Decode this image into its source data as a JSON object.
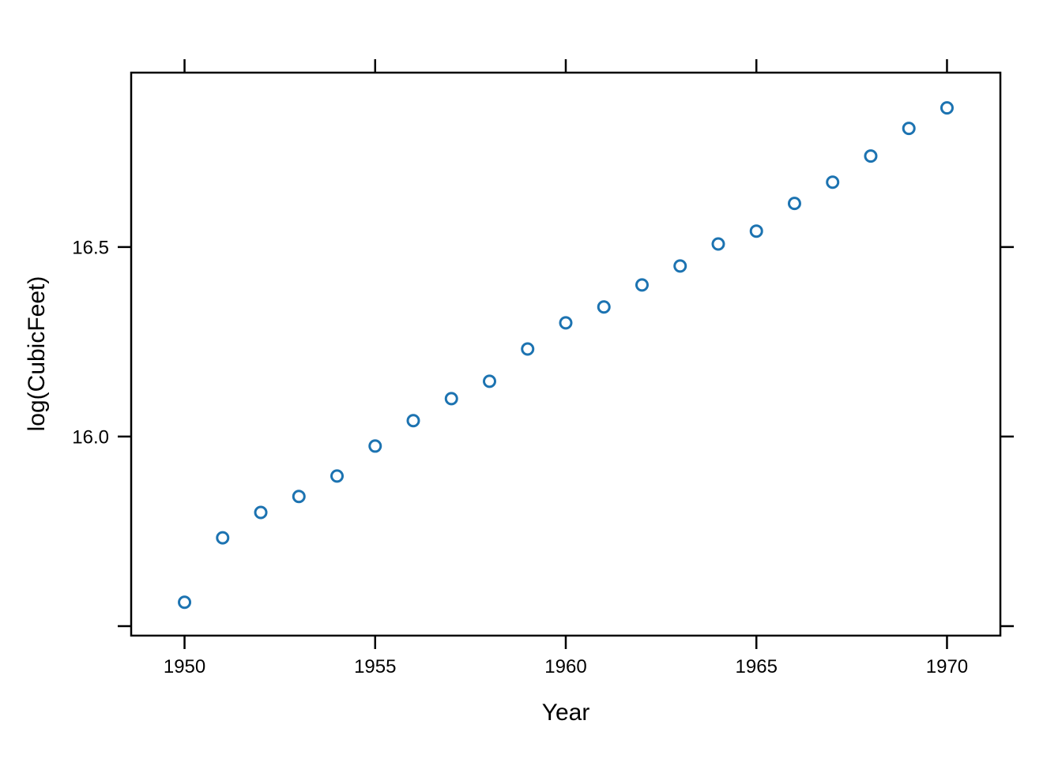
{
  "chart_data": {
    "type": "scatter",
    "title": "",
    "xlabel": "Year",
    "ylabel": "log(CubicFeet)",
    "x": [
      1950,
      1951,
      1952,
      1953,
      1954,
      1955,
      1956,
      1957,
      1958,
      1959,
      1960,
      1961,
      1962,
      1963,
      1964,
      1965,
      1966,
      1967,
      1968,
      1969,
      1970
    ],
    "y": [
      15.563,
      15.733,
      15.8,
      15.842,
      15.896,
      15.975,
      16.042,
      16.1,
      16.146,
      16.231,
      16.3,
      16.342,
      16.4,
      16.45,
      16.508,
      16.542,
      16.615,
      16.671,
      16.74,
      16.813,
      16.867
    ],
    "xlim": [
      1948.6,
      1971.4
    ],
    "ylim": [
      15.475,
      16.96
    ],
    "x_ticks": {
      "values": [
        1950,
        1955,
        1960,
        1965,
        1970
      ],
      "labels": [
        "1950",
        "1955",
        "1960",
        "1965",
        "1970"
      ]
    },
    "y_ticks": {
      "values": [
        15.5,
        16.0,
        16.5
      ],
      "labels": [
        "",
        "16.0",
        "16.5"
      ]
    },
    "grid": false,
    "legend": null,
    "marker": "open-circle",
    "point_color": "#1c73b1",
    "axis_color": "#000000",
    "background_color": "#ffffff",
    "tick_sides": [
      "bottom",
      "left",
      "top",
      "right"
    ],
    "labeled_sides": [
      "bottom",
      "left"
    ]
  }
}
